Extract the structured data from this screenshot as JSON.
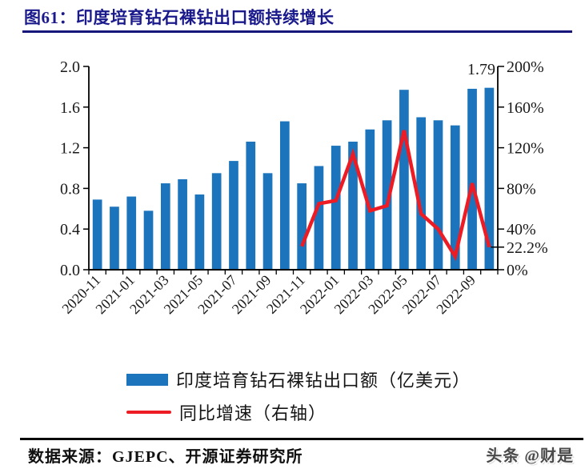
{
  "title": {
    "text": "图61：印度培育钻石裸钻出口额持续增长"
  },
  "colors": {
    "title": "#1a1a8c",
    "title_underline": "#15157a",
    "bar": "#1c75bc",
    "line": "#ed1c24",
    "axis": "#000000",
    "axis_text": "#1a1a1a",
    "watermark": "#4a4a4a"
  },
  "chart_data": {
    "type": "bar",
    "title": "",
    "xlabel": "",
    "ylabel": "",
    "grid": false,
    "legend_position": "bottom",
    "categories": [
      "2020-11",
      "2020-12",
      "2021-01",
      "2021-02",
      "2021-03",
      "2021-04",
      "2021-05",
      "2021-06",
      "2021-07",
      "2021-08",
      "2021-09",
      "2021-10",
      "2021-11",
      "2021-12",
      "2022-01",
      "2022-02",
      "2022-03",
      "2022-04",
      "2022-05",
      "2022-06",
      "2022-07",
      "2022-08",
      "2022-09",
      "2022-10"
    ],
    "series": [
      {
        "name": "印度培育钻石裸钻出口额（亿美元）",
        "type": "bar",
        "axis": "left",
        "values": [
          0.69,
          0.62,
          0.72,
          0.58,
          0.85,
          0.89,
          0.74,
          0.95,
          1.07,
          1.26,
          0.95,
          1.46,
          0.85,
          1.02,
          1.22,
          1.26,
          1.38,
          1.47,
          1.77,
          1.5,
          1.47,
          1.42,
          1.78,
          1.79
        ]
      },
      {
        "name": "同比增速（右轴）",
        "type": "line",
        "axis": "right",
        "values": [
          null,
          null,
          null,
          null,
          null,
          null,
          null,
          null,
          null,
          null,
          null,
          null,
          23,
          65,
          68,
          114,
          58,
          63,
          137,
          55,
          40,
          13,
          85,
          22.2
        ]
      }
    ],
    "left_axis": {
      "min": 0,
      "max": 2,
      "ticks": [
        "0.0",
        "0.4",
        "0.8",
        "1.2",
        "1.6",
        "2.0"
      ]
    },
    "right_axis": {
      "min": 0,
      "max": 200,
      "ticks": [
        "0%",
        "40%",
        "80%",
        "120%",
        "160%",
        "200%"
      ],
      "callout_label": "22.2%",
      "callout_value": 22.2
    },
    "x_axis": {
      "shown_labels": [
        "2020-11",
        "2021-01",
        "2021-03",
        "2021-05",
        "2021-07",
        "2021-09",
        "2021-11",
        "2022-01",
        "2022-03",
        "2022-05",
        "2022-07",
        "2022-09"
      ],
      "label_rotation": -45
    },
    "annotations": [
      {
        "text": "1.79",
        "category": "2022-10",
        "value": 1.79
      }
    ]
  },
  "footer": {
    "source": "数据来源：GJEPC、开源证券研究所",
    "watermark": "头条 @财是"
  }
}
